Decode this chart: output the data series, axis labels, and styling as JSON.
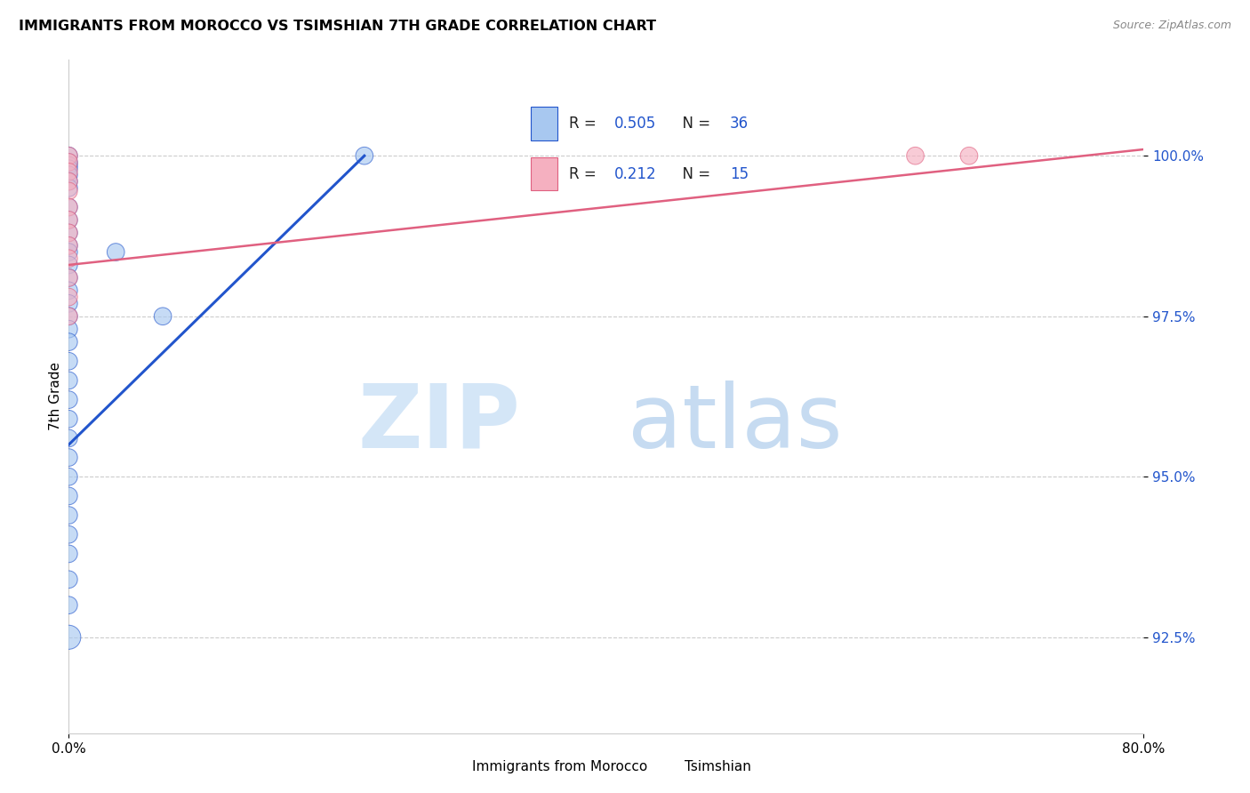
{
  "title": "IMMIGRANTS FROM MOROCCO VS TSIMSHIAN 7TH GRADE CORRELATION CHART",
  "source": "Source: ZipAtlas.com",
  "ylabel": "7th Grade",
  "y_ticks": [
    92.5,
    95.0,
    97.5,
    100.0
  ],
  "y_tick_labels": [
    "92.5%",
    "95.0%",
    "97.5%",
    "100.0%"
  ],
  "xlim": [
    0.0,
    80.0
  ],
  "ylim": [
    91.0,
    101.5
  ],
  "blue_R": "0.505",
  "blue_N": "36",
  "pink_R": "0.212",
  "pink_N": "15",
  "blue_color": "#a8c8f0",
  "pink_color": "#f5b0c0",
  "trendline_blue": "#2255cc",
  "trendline_pink": "#e06080",
  "blue_scatter": [
    [
      0.0,
      100.0
    ],
    [
      0.0,
      99.9
    ],
    [
      0.0,
      99.85
    ],
    [
      0.0,
      99.8
    ],
    [
      0.0,
      99.7
    ],
    [
      0.0,
      99.6
    ],
    [
      0.0,
      99.5
    ],
    [
      0.0,
      99.2
    ],
    [
      0.0,
      99.0
    ],
    [
      0.0,
      98.8
    ],
    [
      0.0,
      98.6
    ],
    [
      0.0,
      98.5
    ],
    [
      0.0,
      98.3
    ],
    [
      0.0,
      98.1
    ],
    [
      0.0,
      97.9
    ],
    [
      0.0,
      97.7
    ],
    [
      0.0,
      97.5
    ],
    [
      0.0,
      97.3
    ],
    [
      0.0,
      97.1
    ],
    [
      0.0,
      96.8
    ],
    [
      0.0,
      96.5
    ],
    [
      0.0,
      96.2
    ],
    [
      0.0,
      95.9
    ],
    [
      0.0,
      95.6
    ],
    [
      0.0,
      95.3
    ],
    [
      0.0,
      95.0
    ],
    [
      0.0,
      94.7
    ],
    [
      0.0,
      94.4
    ],
    [
      0.0,
      94.1
    ],
    [
      0.0,
      93.8
    ],
    [
      0.0,
      93.4
    ],
    [
      0.0,
      93.0
    ],
    [
      0.0,
      92.5
    ],
    [
      3.5,
      98.5
    ],
    [
      7.0,
      97.5
    ],
    [
      22.0,
      100.0
    ]
  ],
  "pink_scatter": [
    [
      0.0,
      100.0
    ],
    [
      0.0,
      99.9
    ],
    [
      0.0,
      99.75
    ],
    [
      0.0,
      99.6
    ],
    [
      0.0,
      99.45
    ],
    [
      0.0,
      99.2
    ],
    [
      0.0,
      99.0
    ],
    [
      0.0,
      98.8
    ],
    [
      0.0,
      98.6
    ],
    [
      0.0,
      98.4
    ],
    [
      0.0,
      98.1
    ],
    [
      0.0,
      97.8
    ],
    [
      0.0,
      97.5
    ],
    [
      63.0,
      100.0
    ],
    [
      67.0,
      100.0
    ]
  ],
  "blue_trend_x": [
    0.0,
    22.0
  ],
  "blue_trend_y": [
    95.5,
    100.0
  ],
  "pink_trend_x": [
    0.0,
    80.0
  ],
  "pink_trend_y": [
    98.3,
    100.1
  ],
  "blue_marker_sizes": [
    200,
    200,
    200,
    200,
    200,
    200,
    200,
    200,
    200,
    200,
    200,
    200,
    200,
    200,
    200,
    200,
    200,
    200,
    200,
    200,
    200,
    200,
    200,
    200,
    200,
    200,
    200,
    200,
    200,
    200,
    200,
    200,
    380,
    200,
    200,
    200
  ],
  "pink_marker_sizes": [
    200,
    200,
    200,
    200,
    200,
    200,
    200,
    200,
    200,
    200,
    200,
    200,
    200,
    200,
    200
  ]
}
